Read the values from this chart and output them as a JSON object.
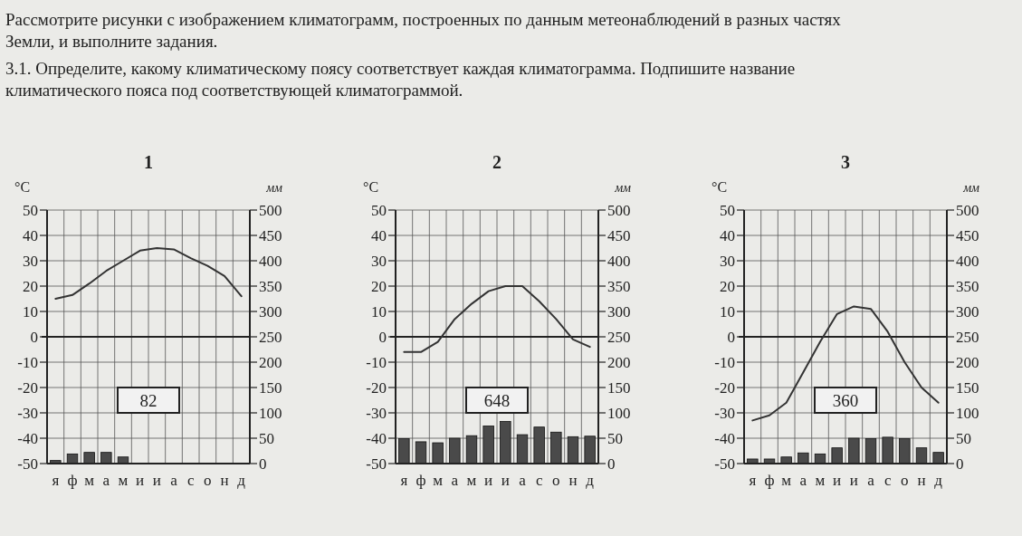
{
  "chart_data": [
    {
      "type": "other",
      "annotations": [
        "Рассмотрите рисунки с изображением климатограмм, построенных по данным метеонаблюдений в разных частях Земли, и выполните задания.",
        "3.1. Определите, какому климатическому поясу соответствует каждая климатограмма. Подпишите название климатического пояса под соответствующей климатограммой."
      ]
    },
    {
      "type": "line",
      "title": "1",
      "ylabel": "°C",
      "y2label": "мм",
      "categories": [
        "я",
        "ф",
        "м",
        "а",
        "м",
        "и",
        "и",
        "а",
        "с",
        "о",
        "н",
        "д"
      ],
      "ylim": [
        -50,
        50
      ],
      "yticks": [
        -50,
        -40,
        -30,
        -20,
        -10,
        0,
        10,
        20,
        30,
        40,
        50
      ],
      "y2lim": [
        0,
        500
      ],
      "y2ticks": [
        0,
        50,
        100,
        150,
        200,
        250,
        300,
        350,
        400,
        450,
        500
      ],
      "grid": true,
      "ref_lines": [
        {
          "axis": "y",
          "value": 0
        }
      ],
      "annotations": [
        "82"
      ],
      "series": [
        {
          "type": "line",
          "color": "#333333",
          "values": [
            15,
            16.5,
            21,
            26,
            30,
            34,
            35,
            34.5,
            31,
            28,
            24,
            16
          ]
        },
        {
          "type": "bar",
          "axis": "y2",
          "color": "#4a4a4a",
          "values": [
            6,
            19,
            22,
            22,
            13,
            0,
            0,
            0,
            0,
            0,
            0,
            0
          ]
        }
      ]
    },
    {
      "type": "line",
      "title": "2",
      "ylabel": "°C",
      "y2label": "мм",
      "categories": [
        "я",
        "ф",
        "м",
        "а",
        "м",
        "и",
        "и",
        "а",
        "с",
        "о",
        "н",
        "д"
      ],
      "ylim": [
        -50,
        50
      ],
      "yticks": [
        -50,
        -40,
        -30,
        -20,
        -10,
        0,
        10,
        20,
        30,
        40,
        50
      ],
      "y2lim": [
        0,
        500
      ],
      "y2ticks": [
        0,
        50,
        100,
        150,
        200,
        250,
        300,
        350,
        400,
        450,
        500
      ],
      "grid": true,
      "ref_lines": [
        {
          "axis": "y",
          "value": 0
        }
      ],
      "annotations": [
        "648"
      ],
      "series": [
        {
          "type": "line",
          "color": "#333333",
          "values": [
            -6,
            -6,
            -2,
            7,
            13,
            18,
            20,
            20,
            14,
            7,
            -1,
            -4
          ]
        },
        {
          "type": "bar",
          "axis": "y2",
          "color": "#4a4a4a",
          "values": [
            49,
            43,
            41,
            50,
            55,
            74,
            83,
            57,
            72,
            62,
            53,
            54
          ]
        }
      ]
    },
    {
      "type": "line",
      "title": "3",
      "ylabel": "°C",
      "y2label": "мм",
      "categories": [
        "я",
        "ф",
        "м",
        "а",
        "м",
        "и",
        "и",
        "а",
        "с",
        "о",
        "н",
        "д"
      ],
      "ylim": [
        -50,
        50
      ],
      "yticks": [
        -50,
        -40,
        -30,
        -20,
        -10,
        0,
        10,
        20,
        30,
        40,
        50
      ],
      "y2lim": [
        0,
        500
      ],
      "y2ticks": [
        0,
        50,
        100,
        150,
        200,
        250,
        300,
        350,
        400,
        450,
        500
      ],
      "grid": true,
      "ref_lines": [
        {
          "axis": "y",
          "value": 0
        }
      ],
      "annotations": [
        "360"
      ],
      "series": [
        {
          "type": "line",
          "color": "#333333",
          "values": [
            -33,
            -31,
            -26,
            -14,
            -2,
            9,
            12,
            11,
            2,
            -10,
            -20,
            -26
          ]
        },
        {
          "type": "bar",
          "axis": "y2",
          "color": "#4a4a4a",
          "values": [
            9,
            9,
            13,
            21,
            19,
            31,
            50,
            49,
            52,
            49,
            31,
            22
          ]
        }
      ]
    }
  ]
}
